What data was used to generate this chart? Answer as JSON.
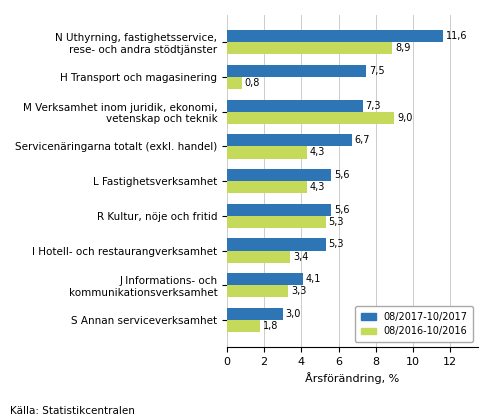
{
  "categories": [
    "N Uthyrning, fastighetsservice,\nrese- och andra stödtjänster",
    "H Transport och magasinering",
    "M Verksamhet inom juridik, ekonomi,\nvetenskap och teknik",
    "Servicenäringarna totalt (exkl. handel)",
    "L Fastighetsverksamhet",
    "R Kultur, nöje och fritid",
    "I Hotell- och restaurangverksamhet",
    "J Informations- och\nkommunikationsverksamhet",
    "S Annan serviceverksamhet"
  ],
  "values_2017": [
    11.6,
    7.5,
    7.3,
    6.7,
    5.6,
    5.6,
    5.3,
    4.1,
    3.0
  ],
  "values_2016": [
    8.9,
    0.8,
    9.0,
    4.3,
    4.3,
    5.3,
    3.4,
    3.3,
    1.8
  ],
  "labels_2017": [
    "11,6",
    "7,5",
    "7,3",
    "6,7",
    "5,6",
    "5,6",
    "5,3",
    "4,1",
    "3,0"
  ],
  "labels_2016": [
    "8,9",
    "0,8",
    "9,0",
    "4,3",
    "4,3",
    "5,3",
    "3,4",
    "3,3",
    "1,8"
  ],
  "color_2017": "#2E75B6",
  "color_2016": "#C5D95A",
  "xlabel": "Årsförändring, %",
  "xlim": [
    0,
    13.5
  ],
  "xticks": [
    0,
    2,
    4,
    6,
    8,
    10,
    12
  ],
  "legend_labels": [
    "08/2017-10/2017",
    "08/2016-10/2016"
  ],
  "source": "Källa: Statistikcentralen",
  "bar_height": 0.35,
  "value_fontsize": 7.0,
  "label_fontsize": 7.5,
  "tick_fontsize": 8.0
}
